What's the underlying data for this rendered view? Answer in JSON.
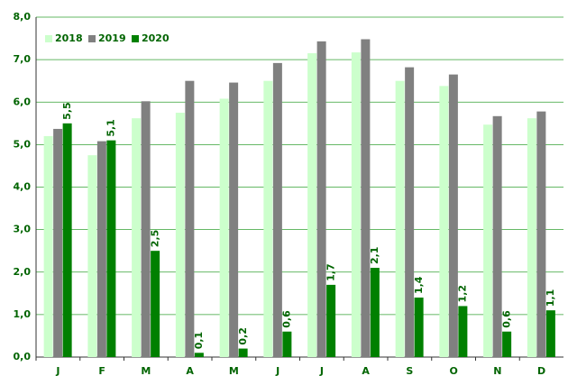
{
  "chart_data": {
    "type": "bar",
    "categories": [
      "J",
      "F",
      "M",
      "A",
      "M",
      "J",
      "J",
      "A",
      "S",
      "O",
      "N",
      "D"
    ],
    "series": [
      {
        "name": "2018",
        "color": "#ccffcc",
        "values": [
          5.2,
          4.75,
          5.62,
          5.75,
          6.08,
          6.5,
          7.15,
          7.17,
          6.5,
          6.38,
          5.47,
          5.62
        ]
      },
      {
        "name": "2019",
        "color": "#808080",
        "values": [
          5.37,
          5.08,
          6.02,
          6.5,
          6.46,
          6.92,
          7.43,
          7.48,
          6.82,
          6.65,
          5.67,
          5.78
        ]
      },
      {
        "name": "2020",
        "color": "#008000",
        "values": [
          5.5,
          5.1,
          2.5,
          0.1,
          0.2,
          0.6,
          1.7,
          2.1,
          1.4,
          1.2,
          0.6,
          1.1
        ],
        "value_labels": [
          "5,5",
          "5,1",
          "2,5",
          "0,1",
          "0,2",
          "0,6",
          "1,7",
          "2,1",
          "1,4",
          "1,2",
          "0,6",
          "1,1"
        ]
      }
    ],
    "ylim": [
      0,
      8
    ],
    "yticks": [
      {
        "value": 0,
        "label": "0,0"
      },
      {
        "value": 1,
        "label": "1,0"
      },
      {
        "value": 2,
        "label": "2,0"
      },
      {
        "value": 3,
        "label": "3,0"
      },
      {
        "value": 4,
        "label": "4,0"
      },
      {
        "value": 5,
        "label": "5,0"
      },
      {
        "value": 6,
        "label": "6,0"
      },
      {
        "value": 7,
        "label": "7,0"
      },
      {
        "value": 8,
        "label": "8,0"
      }
    ],
    "grid": true,
    "legend": "top-left"
  }
}
